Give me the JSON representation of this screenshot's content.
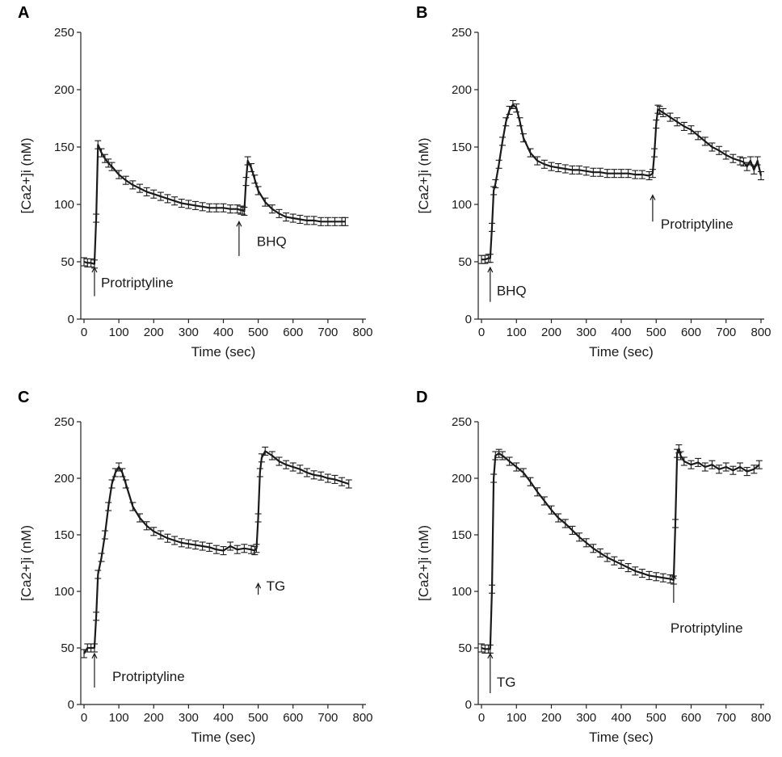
{
  "chart_data": [
    {
      "panel": "A",
      "type": "line",
      "xlabel": "Time (sec)",
      "ylabel": "[Ca2+]i (nM)",
      "xlim": [
        0,
        800
      ],
      "ylim": [
        0,
        250
      ],
      "xticks": [
        0,
        100,
        200,
        300,
        400,
        500,
        600,
        700,
        800
      ],
      "yticks": [
        0,
        50,
        100,
        150,
        200,
        250
      ],
      "series": [
        {
          "x": [
            0,
            10,
            20,
            30,
            35,
            40,
            50,
            60,
            70,
            80,
            100,
            120,
            140,
            160,
            180,
            200,
            220,
            240,
            260,
            280,
            300,
            320,
            340,
            360,
            380,
            400,
            420,
            440,
            450,
            455,
            460,
            465,
            470,
            480,
            490,
            500,
            520,
            540,
            560,
            580,
            600,
            620,
            640,
            660,
            680,
            700,
            720,
            740,
            750
          ],
          "y": [
            50,
            49,
            49,
            48,
            88,
            152,
            145,
            140,
            136,
            133,
            126,
            121,
            117,
            114,
            111,
            109,
            107,
            105,
            103,
            101,
            100,
            99,
            98,
            97,
            97,
            97,
            96,
            96,
            95,
            95,
            94,
            120,
            138,
            132,
            122,
            112,
            102,
            96,
            92,
            89,
            88,
            87,
            86,
            86,
            85,
            85,
            85,
            85,
            85
          ]
        }
      ],
      "annotations": [
        {
          "label": "Protriptyline",
          "x": 30
        },
        {
          "label": "BHQ",
          "x": 445
        }
      ]
    },
    {
      "panel": "B",
      "type": "line",
      "xlabel": "Time (sec)",
      "ylabel": "[Ca2+]i (nM)",
      "xlim": [
        0,
        800
      ],
      "ylim": [
        0,
        250
      ],
      "xticks": [
        0,
        100,
        200,
        300,
        400,
        500,
        600,
        700,
        800
      ],
      "yticks": [
        0,
        50,
        100,
        150,
        200,
        250
      ],
      "series": [
        {
          "x": [
            0,
            10,
            20,
            25,
            30,
            35,
            40,
            50,
            60,
            70,
            80,
            90,
            100,
            110,
            120,
            140,
            160,
            180,
            200,
            220,
            240,
            260,
            280,
            300,
            320,
            340,
            360,
            380,
            400,
            420,
            440,
            460,
            480,
            490,
            495,
            500,
            505,
            510,
            520,
            540,
            560,
            580,
            600,
            620,
            640,
            660,
            680,
            700,
            720,
            740,
            750,
            760,
            770,
            780,
            790,
            800
          ],
          "y": [
            52,
            52,
            53,
            53,
            80,
            112,
            118,
            135,
            155,
            172,
            182,
            187,
            184,
            172,
            158,
            145,
            138,
            135,
            133,
            132,
            131,
            130,
            130,
            129,
            128,
            128,
            127,
            127,
            127,
            127,
            126,
            126,
            125,
            127,
            145,
            170,
            183,
            182,
            180,
            176,
            172,
            168,
            165,
            160,
            155,
            150,
            147,
            143,
            140,
            138,
            137,
            133,
            138,
            130,
            138,
            125
          ]
        }
      ],
      "annotations": [
        {
          "label": "BHQ",
          "x": 25
        },
        {
          "label": "Protriptyline",
          "x": 490
        }
      ]
    },
    {
      "panel": "C",
      "type": "line",
      "xlabel": "Time (sec)",
      "ylabel": "[Ca2+]i (nM)",
      "xlim": [
        0,
        800
      ],
      "ylim": [
        0,
        250
      ],
      "xticks": [
        0,
        100,
        200,
        300,
        400,
        500,
        600,
        700,
        800
      ],
      "yticks": [
        0,
        50,
        100,
        150,
        200,
        250
      ],
      "series": [
        {
          "x": [
            0,
            10,
            20,
            30,
            35,
            40,
            50,
            60,
            70,
            80,
            90,
            100,
            110,
            120,
            140,
            160,
            180,
            200,
            220,
            240,
            260,
            280,
            300,
            320,
            340,
            360,
            380,
            400,
            420,
            440,
            460,
            480,
            490,
            495,
            500,
            505,
            510,
            520,
            540,
            560,
            580,
            600,
            620,
            640,
            660,
            680,
            700,
            720,
            740,
            760
          ],
          "y": [
            45,
            50,
            50,
            50,
            78,
            115,
            130,
            150,
            175,
            195,
            205,
            210,
            205,
            195,
            175,
            165,
            158,
            153,
            150,
            147,
            145,
            143,
            142,
            141,
            140,
            139,
            137,
            136,
            140,
            137,
            138,
            137,
            136,
            138,
            165,
            205,
            218,
            224,
            220,
            215,
            212,
            210,
            208,
            205,
            203,
            202,
            200,
            199,
            197,
            195
          ]
        }
      ],
      "annotations": [
        {
          "label": "Protriptyline",
          "x": 30
        },
        {
          "label": "TG",
          "x": 500
        }
      ]
    },
    {
      "panel": "D",
      "type": "line",
      "xlabel": "Time (sec)",
      "ylabel": "[Ca2+]i (nM)",
      "xlim": [
        0,
        800
      ],
      "ylim": [
        0,
        250
      ],
      "xticks": [
        0,
        100,
        200,
        300,
        400,
        500,
        600,
        700,
        800
      ],
      "yticks": [
        0,
        50,
        100,
        150,
        200,
        250
      ],
      "series": [
        {
          "x": [
            0,
            10,
            20,
            25,
            30,
            35,
            40,
            50,
            60,
            80,
            100,
            120,
            140,
            160,
            180,
            200,
            220,
            240,
            260,
            280,
            300,
            320,
            340,
            360,
            380,
            400,
            420,
            440,
            460,
            480,
            500,
            520,
            540,
            550,
            555,
            560,
            565,
            570,
            580,
            600,
            620,
            640,
            660,
            680,
            700,
            720,
            740,
            760,
            780,
            795
          ],
          "y": [
            50,
            49,
            49,
            49,
            102,
            200,
            220,
            222,
            220,
            215,
            210,
            205,
            197,
            188,
            180,
            172,
            165,
            160,
            154,
            148,
            143,
            138,
            134,
            130,
            127,
            124,
            121,
            118,
            116,
            114,
            113,
            112,
            111,
            110,
            160,
            222,
            226,
            220,
            215,
            212,
            214,
            210,
            212,
            208,
            210,
            207,
            210,
            206,
            208,
            212
          ]
        }
      ],
      "annotations": [
        {
          "label": "TG",
          "x": 25
        },
        {
          "label": "Protriptyline",
          "x": 550
        }
      ]
    }
  ]
}
